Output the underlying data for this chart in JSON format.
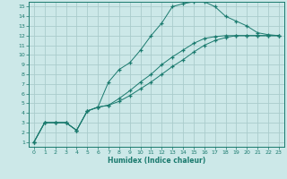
{
  "xlabel": "Humidex (Indice chaleur)",
  "bg_color": "#cce8e8",
  "grid_color": "#aacccc",
  "line_color": "#1a7a6e",
  "xlim": [
    -0.5,
    23.5
  ],
  "ylim": [
    0.5,
    15.5
  ],
  "xticks": [
    0,
    1,
    2,
    3,
    4,
    5,
    6,
    7,
    8,
    9,
    10,
    11,
    12,
    13,
    14,
    15,
    16,
    17,
    18,
    19,
    20,
    21,
    22,
    23
  ],
  "yticks": [
    1,
    2,
    3,
    4,
    5,
    6,
    7,
    8,
    9,
    10,
    11,
    12,
    13,
    14,
    15
  ],
  "line1_x": [
    0,
    1,
    2,
    3,
    4,
    5,
    6,
    7,
    8,
    9,
    10,
    11,
    12,
    13,
    14,
    15,
    16,
    17,
    18,
    19,
    20,
    21,
    22,
    23
  ],
  "line1_y": [
    1,
    3,
    3,
    3,
    2.2,
    4.2,
    4.6,
    7.2,
    8.5,
    9.2,
    10.5,
    12.0,
    13.3,
    15.0,
    15.3,
    15.5,
    15.5,
    15.0,
    14.0,
    13.5,
    13.0,
    12.3,
    12.1,
    12.0
  ],
  "line2_x": [
    0,
    1,
    2,
    3,
    4,
    5,
    6,
    7,
    8,
    9,
    10,
    11,
    12,
    13,
    14,
    15,
    16,
    17,
    18,
    19,
    20,
    21,
    22,
    23
  ],
  "line2_y": [
    1,
    3,
    3,
    3,
    2.2,
    4.2,
    4.6,
    4.8,
    5.2,
    5.8,
    6.5,
    7.2,
    8.0,
    8.8,
    9.5,
    10.3,
    11.0,
    11.5,
    11.8,
    12.0,
    12.0,
    12.0,
    12.0,
    12.0
  ],
  "line3_x": [
    0,
    1,
    2,
    3,
    4,
    5,
    6,
    7,
    8,
    9,
    10,
    11,
    12,
    13,
    14,
    15,
    16,
    17,
    18,
    19,
    20,
    21,
    22,
    23
  ],
  "line3_y": [
    1,
    3,
    3,
    3,
    2.2,
    4.2,
    4.6,
    4.8,
    5.5,
    6.3,
    7.2,
    8.0,
    9.0,
    9.8,
    10.5,
    11.2,
    11.7,
    11.9,
    12.0,
    12.0,
    12.0,
    12.0,
    12.0,
    12.0
  ]
}
